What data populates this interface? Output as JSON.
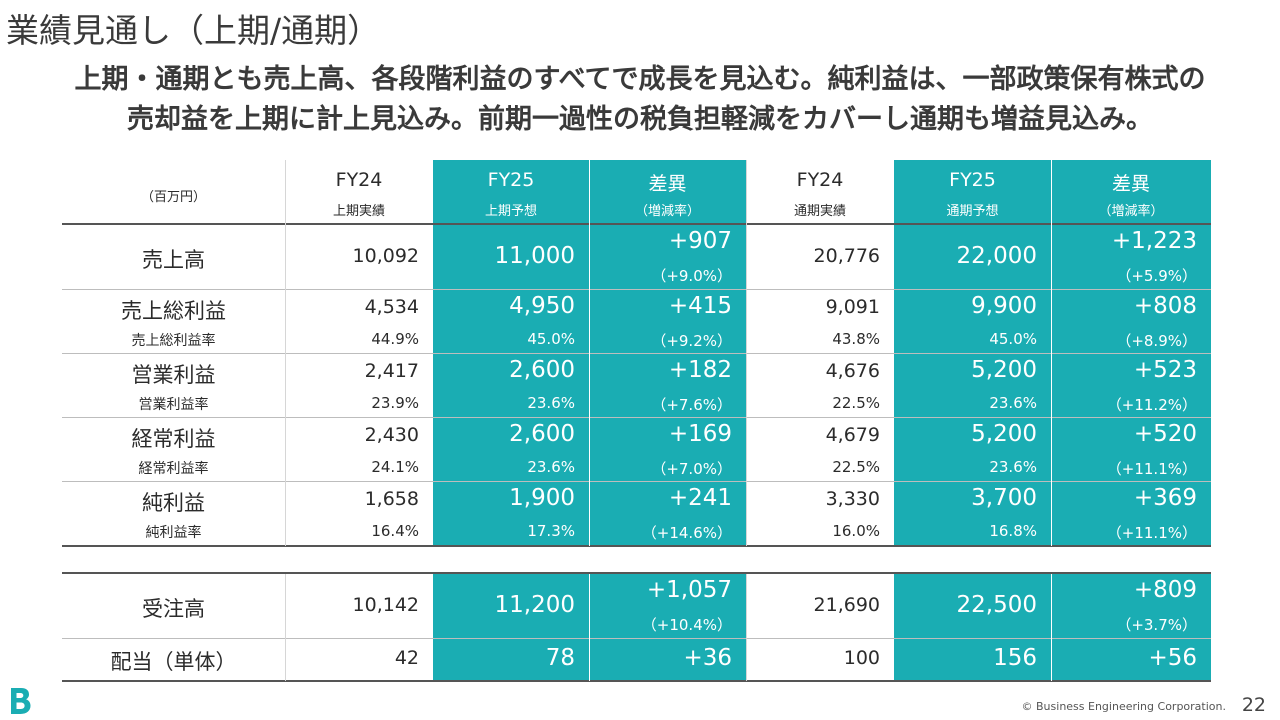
{
  "title": "業績見通し（上期/通期）",
  "subtitle": {
    "line1": "上期・通期とも売上高、各段階利益のすべてで成長を見込む。純利益は、一部政策保有株式の",
    "line2": "売却益を上期に計上見込み。前期一過性の税負担軽減をカバーし通期も増益見込み。"
  },
  "table": {
    "unit": "（百万円）",
    "headers": [
      {
        "top": "FY24",
        "bottom": "上期実績"
      },
      {
        "top": "FY25",
        "bottom": "上期予想"
      },
      {
        "top": "差異",
        "bottom": "（増減率）"
      },
      {
        "top": "FY24",
        "bottom": "通期実績"
      },
      {
        "top": "FY25",
        "bottom": "通期予想"
      },
      {
        "top": "差異",
        "bottom": "（増減率）"
      }
    ],
    "sales": {
      "label": "売上高",
      "v": [
        "10,092",
        "11,000",
        "+907",
        "20,776",
        "22,000",
        "+1,223"
      ],
      "p": [
        "（+9.0%）",
        "（+5.9%）"
      ]
    },
    "gross": {
      "label": "売上総利益",
      "v": [
        "4,534",
        "4,950",
        "+415",
        "9,091",
        "9,900",
        "+808"
      ],
      "sublabel": "売上総利益率",
      "s": [
        "44.9%",
        "45.0%",
        "（+9.2%）",
        "43.8%",
        "45.0%",
        "（+8.9%）"
      ]
    },
    "operating": {
      "label": "営業利益",
      "v": [
        "2,417",
        "2,600",
        "+182",
        "4,676",
        "5,200",
        "+523"
      ],
      "sublabel": "営業利益率",
      "s": [
        "23.9%",
        "23.6%",
        "（+7.6%）",
        "22.5%",
        "23.6%",
        "（+11.2%）"
      ]
    },
    "ordinary": {
      "label": "経常利益",
      "v": [
        "2,430",
        "2,600",
        "+169",
        "4,679",
        "5,200",
        "+520"
      ],
      "sublabel": "経常利益率",
      "s": [
        "24.1%",
        "23.6%",
        "（+7.0%）",
        "22.5%",
        "23.6%",
        "（+11.1%）"
      ]
    },
    "net": {
      "label": "純利益",
      "v": [
        "1,658",
        "1,900",
        "+241",
        "3,330",
        "3,700",
        "+369"
      ],
      "sublabel": "純利益率",
      "s": [
        "16.4%",
        "17.3%",
        "（+14.6%）",
        "16.0%",
        "16.8%",
        "（+11.1%）"
      ]
    },
    "orders": {
      "label": "受注高",
      "v": [
        "10,142",
        "11,200",
        "+1,057",
        "21,690",
        "22,500",
        "+809"
      ],
      "p": [
        "（+10.4%）",
        "（+3.7%）"
      ]
    },
    "dividend": {
      "label": "配当（単体）",
      "v": [
        "42",
        "78",
        "+36",
        "100",
        "156",
        "+56"
      ]
    }
  },
  "footer": {
    "copyright": "© Business Engineering Corporation.",
    "page": "22"
  },
  "colors": {
    "highlight": "#1aadb3",
    "logo": "#1aadb3"
  }
}
